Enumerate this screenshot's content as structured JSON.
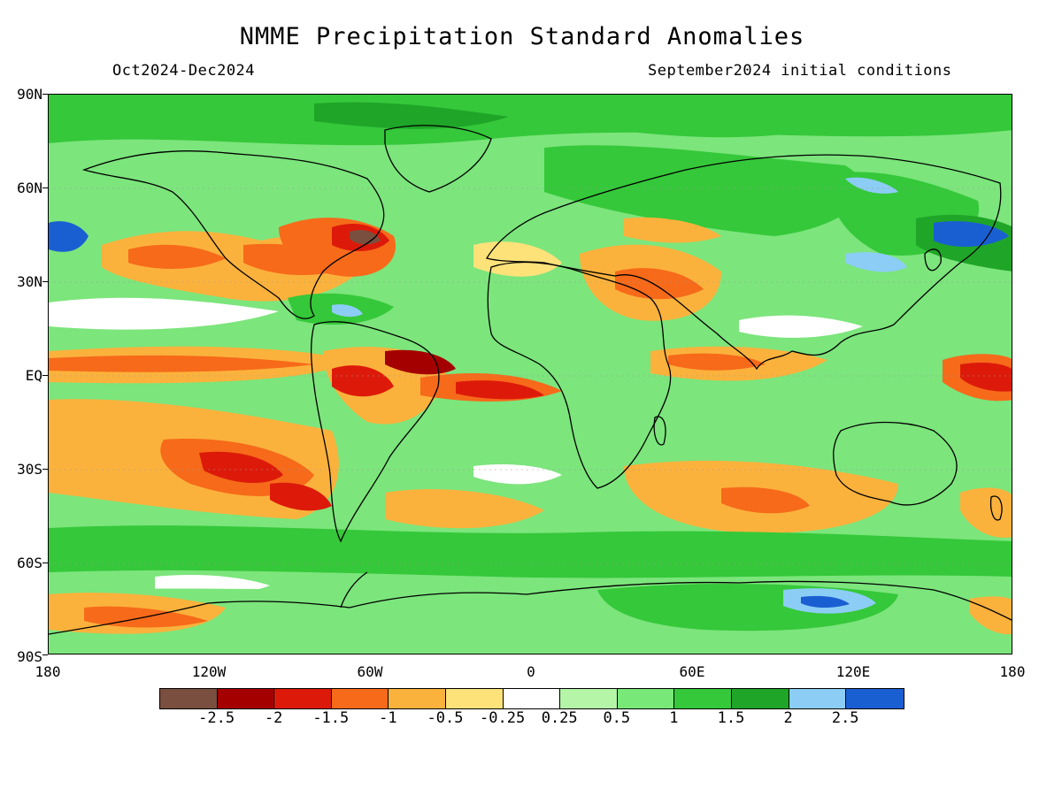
{
  "title": "NMME Precipitation Standard Anomalies",
  "subtitle_left": "Oct2024-Dec2024",
  "subtitle_right": "September2024 initial conditions",
  "y_axis": {
    "labels": [
      "90N",
      "60N",
      "30N",
      "EQ",
      "30S",
      "60S",
      "90S"
    ]
  },
  "x_axis": {
    "labels": [
      "180",
      "120W",
      "60W",
      "0",
      "60E",
      "120E",
      "180"
    ]
  },
  "colorbar": {
    "colors": [
      "#7a4f3f",
      "#a50000",
      "#dd1a0a",
      "#f66a1a",
      "#fbb23c",
      "#fde27a",
      "#ffffff",
      "#b4f5a8",
      "#78e878",
      "#35c83a",
      "#1fa528",
      "#8ccdf5",
      "#1a5fd2"
    ],
    "labels": [
      "-2.5",
      "-2",
      "-1.5",
      "-1",
      "-0.5",
      "-0.25",
      "0.25",
      "0.5",
      "1",
      "1.5",
      "2",
      "2.5"
    ]
  },
  "colors": {
    "ocean_base": "#7ce57c",
    "land_outline": "#000000"
  }
}
